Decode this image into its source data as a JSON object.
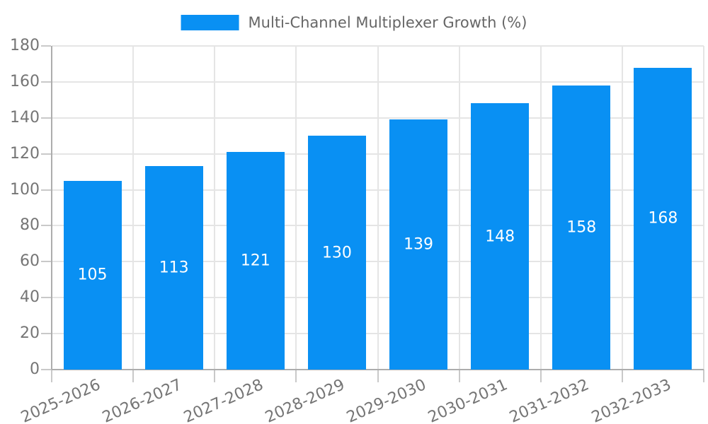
{
  "legend": {
    "label": "Multi-Channel Multiplexer Growth (%)"
  },
  "chart_data": {
    "type": "bar",
    "title": "Multi-Channel Multiplexer Growth (%)",
    "categories": [
      "2025-2026",
      "2026-2027",
      "2027-2028",
      "2028-2029",
      "2029-2030",
      "2030-2031",
      "2031-2032",
      "2032-2033"
    ],
    "values": [
      105,
      113,
      121,
      130,
      139,
      148,
      158,
      168
    ],
    "xlabel": "",
    "ylabel": "",
    "ylim": [
      0,
      180
    ],
    "yticks": [
      0,
      20,
      40,
      60,
      80,
      100,
      120,
      140,
      160,
      180
    ],
    "grid": true,
    "legend_position": "top-center",
    "value_labels_inside_bars": true,
    "colors": {
      "bar": "#0990f3",
      "bar_value_label": "#ffffff",
      "axis_text": "#757575",
      "legend_text": "#666666",
      "gridline": "#e5e5e5",
      "axis_line": "#adadad",
      "tick": "#c9c9c9",
      "background": "#ffffff"
    }
  }
}
